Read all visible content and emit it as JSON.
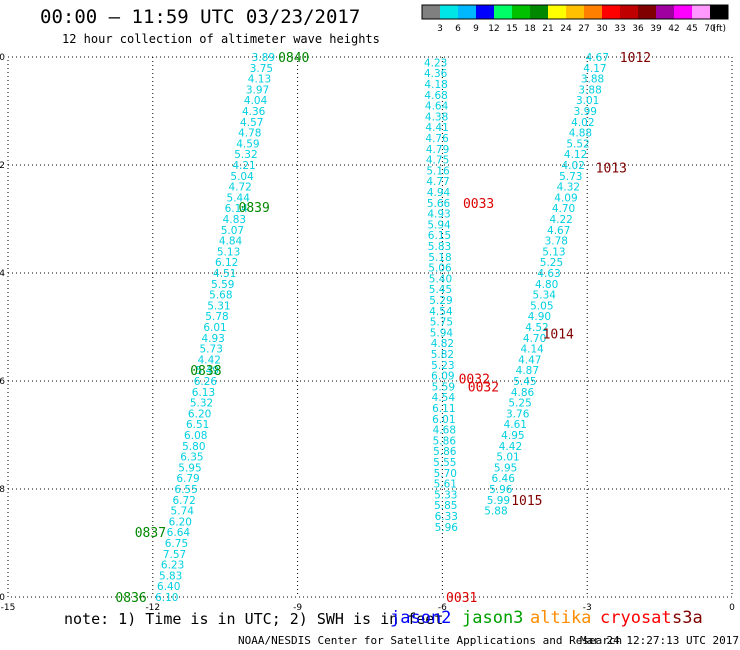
{
  "header": {
    "title": "00:00 – 11:59 UTC 03/23/2017",
    "subtitle": "12 hour collection of altimeter wave heights"
  },
  "colorbar": {
    "unit": "(ft)",
    "labels": [
      "3",
      "6",
      "9",
      "12",
      "15",
      "18",
      "21",
      "24",
      "27",
      "30",
      "33",
      "36",
      "39",
      "42",
      "45",
      "70"
    ],
    "colors": [
      "#808080",
      "#00e5e5",
      "#00b8ff",
      "#0000ff",
      "#00ff66",
      "#00c000",
      "#008800",
      "#ffff00",
      "#ffc000",
      "#ff8000",
      "#ff0000",
      "#c00000",
      "#800000",
      "#a000a0",
      "#ff00ff",
      "#ff99ff",
      "#000000"
    ]
  },
  "footer": {
    "note": "note: 1) Time is in UTC; 2) SWH is in feet",
    "credit": "NOAA/NESDIS Center for Satellite Applications and Research",
    "timestamp": "Mar 24 12:27:13 UTC 2017"
  },
  "legend": [
    {
      "name": "jason2",
      "color": "#0000ff"
    },
    {
      "name": "jason3",
      "color": "#00a000"
    },
    {
      "name": "altika",
      "color": "#ff8c00"
    },
    {
      "name": "cryosat",
      "color": "#ff0000"
    },
    {
      "name": "s3a",
      "color": "#800000"
    }
  ],
  "chart_data": {
    "type": "scatter",
    "title": "00:00 – 11:59 UTC 03/23/2017",
    "subtitle": "12 hour collection of altimeter wave heights",
    "xlim": [
      -15,
      0
    ],
    "ylim": [
      -10,
      0
    ],
    "xticks": [
      -15,
      -12,
      -9,
      -6,
      -3,
      0
    ],
    "yticks": [
      0,
      -2,
      -4,
      -6,
      -8,
      -10
    ],
    "grid": true,
    "value_color": "#00d0e0",
    "tracks": [
      {
        "satellite": "jason3",
        "time_color": "#008800",
        "points": [
          {
            "x": -9.71,
            "y": -0.0,
            "v": "3.89"
          },
          {
            "x": -9.75,
            "y": -0.2,
            "v": "3.75"
          },
          {
            "x": -9.79,
            "y": -0.4,
            "v": "4.13"
          },
          {
            "x": -9.83,
            "y": -0.6,
            "v": "3.97"
          },
          {
            "x": -9.87,
            "y": -0.8,
            "v": "4.04"
          },
          {
            "x": -9.91,
            "y": -1.0,
            "v": "4.36"
          },
          {
            "x": -9.95,
            "y": -1.2,
            "v": "4.57"
          },
          {
            "x": -9.99,
            "y": -1.4,
            "v": "4.78"
          },
          {
            "x": -10.03,
            "y": -1.6,
            "v": "4.59"
          },
          {
            "x": -10.07,
            "y": -1.8,
            "v": "5.32"
          },
          {
            "x": -10.11,
            "y": -2.0,
            "v": "4.21"
          },
          {
            "x": -10.15,
            "y": -2.2,
            "v": "5.04"
          },
          {
            "x": -10.19,
            "y": -2.4,
            "v": "4.72"
          },
          {
            "x": -10.23,
            "y": -2.6,
            "v": "5.44"
          },
          {
            "x": -10.27,
            "y": -2.8,
            "v": "6.14"
          },
          {
            "x": -10.31,
            "y": -3.0,
            "v": "4.83"
          },
          {
            "x": -10.35,
            "y": -3.2,
            "v": "5.07"
          },
          {
            "x": -10.39,
            "y": -3.4,
            "v": "4.84"
          },
          {
            "x": -10.43,
            "y": -3.6,
            "v": "5.13"
          },
          {
            "x": -10.47,
            "y": -3.8,
            "v": "6.12"
          },
          {
            "x": -10.51,
            "y": -4.0,
            "v": "4.51"
          },
          {
            "x": -10.55,
            "y": -4.2,
            "v": "5.59"
          },
          {
            "x": -10.59,
            "y": -4.4,
            "v": "5.68"
          },
          {
            "x": -10.63,
            "y": -4.6,
            "v": "5.31"
          },
          {
            "x": -10.67,
            "y": -4.8,
            "v": "5.78"
          },
          {
            "x": -10.71,
            "y": -5.0,
            "v": "6.01"
          },
          {
            "x": -10.75,
            "y": -5.2,
            "v": "4.93"
          },
          {
            "x": -10.79,
            "y": -5.4,
            "v": "5.73"
          },
          {
            "x": -10.83,
            "y": -5.6,
            "v": "4.42"
          },
          {
            "x": -10.87,
            "y": -5.8,
            "v": "5.49"
          },
          {
            "x": -10.91,
            "y": -6.0,
            "v": "6.26"
          },
          {
            "x": -10.95,
            "y": -6.2,
            "v": "6.13"
          },
          {
            "x": -10.99,
            "y": -6.4,
            "v": "5.32"
          },
          {
            "x": -11.03,
            "y": -6.6,
            "v": "6.20"
          },
          {
            "x": -11.07,
            "y": -6.8,
            "v": "6.51"
          },
          {
            "x": -11.11,
            "y": -7.0,
            "v": "6.08"
          },
          {
            "x": -11.15,
            "y": -7.2,
            "v": "5.80"
          },
          {
            "x": -11.19,
            "y": -7.4,
            "v": "6.35"
          },
          {
            "x": -11.23,
            "y": -7.6,
            "v": "5.95"
          },
          {
            "x": -11.27,
            "y": -7.8,
            "v": "6.79"
          },
          {
            "x": -11.31,
            "y": -8.0,
            "v": "6.55"
          },
          {
            "x": -11.35,
            "y": -8.2,
            "v": "6.72"
          },
          {
            "x": -11.39,
            "y": -8.4,
            "v": "5.74"
          },
          {
            "x": -11.43,
            "y": -8.6,
            "v": "6.20"
          },
          {
            "x": -11.47,
            "y": -8.8,
            "v": "6.64"
          },
          {
            "x": -11.51,
            "y": -9.0,
            "v": "6.75"
          },
          {
            "x": -11.55,
            "y": -9.2,
            "v": "7.57"
          },
          {
            "x": -11.59,
            "y": -9.4,
            "v": "6.23"
          },
          {
            "x": -11.63,
            "y": -9.6,
            "v": "5.83"
          },
          {
            "x": -11.67,
            "y": -9.8,
            "v": "6.40"
          },
          {
            "x": -11.71,
            "y": -10.0,
            "v": "6.10"
          }
        ],
        "times": [
          {
            "x": -9.08,
            "y": 0.0,
            "t": "0840"
          },
          {
            "x": -9.9,
            "y": -2.78,
            "t": "0839"
          },
          {
            "x": -10.9,
            "y": -5.8,
            "t": "0838"
          },
          {
            "x": -12.05,
            "y": -8.8,
            "t": "0837"
          },
          {
            "x": -12.45,
            "y": -10.0,
            "t": "0836"
          }
        ]
      },
      {
        "satellite": "cryosat",
        "time_color": "#dd0000",
        "points": [
          {
            "x": -6.14,
            "y": -0.1,
            "v": "4.23"
          },
          {
            "x": -6.14,
            "y": -0.3,
            "v": "4.36"
          },
          {
            "x": -6.13,
            "y": -0.5,
            "v": "4.18"
          },
          {
            "x": -6.13,
            "y": -0.7,
            "v": "4.68"
          },
          {
            "x": -6.12,
            "y": -0.9,
            "v": "4.64"
          },
          {
            "x": -6.12,
            "y": -1.1,
            "v": "4.38"
          },
          {
            "x": -6.11,
            "y": -1.3,
            "v": "4.41"
          },
          {
            "x": -6.11,
            "y": -1.5,
            "v": "4.76"
          },
          {
            "x": -6.1,
            "y": -1.7,
            "v": "4.79"
          },
          {
            "x": -6.1,
            "y": -1.9,
            "v": "4.75"
          },
          {
            "x": -6.09,
            "y": -2.1,
            "v": "5.16"
          },
          {
            "x": -6.09,
            "y": -2.3,
            "v": "4.77"
          },
          {
            "x": -6.08,
            "y": -2.5,
            "v": "4.94"
          },
          {
            "x": -6.08,
            "y": -2.7,
            "v": "5.66"
          },
          {
            "x": -6.07,
            "y": -2.9,
            "v": "4.93"
          },
          {
            "x": -6.07,
            "y": -3.1,
            "v": "5.94"
          },
          {
            "x": -6.06,
            "y": -3.3,
            "v": "6.15"
          },
          {
            "x": -6.06,
            "y": -3.5,
            "v": "5.83"
          },
          {
            "x": -6.05,
            "y": -3.7,
            "v": "5.18"
          },
          {
            "x": -6.05,
            "y": -3.9,
            "v": "5.06"
          },
          {
            "x": -6.04,
            "y": -4.1,
            "v": "5.40"
          },
          {
            "x": -6.04,
            "y": -4.3,
            "v": "5.45"
          },
          {
            "x": -6.03,
            "y": -4.5,
            "v": "5.29"
          },
          {
            "x": -6.03,
            "y": -4.7,
            "v": "4.54"
          },
          {
            "x": -6.02,
            "y": -4.9,
            "v": "5.75"
          },
          {
            "x": -6.02,
            "y": -5.1,
            "v": "5.94"
          },
          {
            "x": -6.0,
            "y": -5.3,
            "v": "4.82"
          },
          {
            "x": -6.0,
            "y": -5.5,
            "v": "5.82"
          },
          {
            "x": -5.99,
            "y": -5.7,
            "v": "5.23"
          },
          {
            "x": -5.99,
            "y": -5.9,
            "v": "6.09"
          },
          {
            "x": -5.98,
            "y": -6.1,
            "v": "5.59"
          },
          {
            "x": -5.98,
            "y": -6.3,
            "v": "4.54"
          },
          {
            "x": -5.97,
            "y": -6.5,
            "v": "6.11"
          },
          {
            "x": -5.97,
            "y": -6.7,
            "v": "6.01"
          },
          {
            "x": -5.96,
            "y": -6.9,
            "v": "4.68"
          },
          {
            "x": -5.96,
            "y": -7.1,
            "v": "5.86"
          },
          {
            "x": -5.95,
            "y": -7.3,
            "v": "5.86"
          },
          {
            "x": -5.95,
            "y": -7.5,
            "v": "5.55"
          },
          {
            "x": -5.94,
            "y": -7.7,
            "v": "5.70"
          },
          {
            "x": -5.94,
            "y": -7.9,
            "v": "5.61"
          },
          {
            "x": -5.93,
            "y": -8.1,
            "v": "5.33"
          },
          {
            "x": -5.93,
            "y": -8.3,
            "v": "5.85"
          },
          {
            "x": -5.92,
            "y": -8.5,
            "v": "6.33"
          },
          {
            "x": -5.92,
            "y": -8.7,
            "v": "5.96"
          }
        ],
        "times": [
          {
            "x": -5.25,
            "y": -2.7,
            "t": "0033"
          },
          {
            "x": -5.34,
            "y": -5.95,
            "t": "0032"
          },
          {
            "x": -5.15,
            "y": -6.1,
            "t": "0032"
          },
          {
            "x": -5.6,
            "y": -10.0,
            "t": "0031"
          }
        ]
      },
      {
        "satellite": "s3a",
        "time_color": "#800000",
        "points": [
          {
            "x": -2.79,
            "y": -0.0,
            "v": "4.67"
          },
          {
            "x": -2.84,
            "y": -0.2,
            "v": "4.17"
          },
          {
            "x": -2.89,
            "y": -0.4,
            "v": "3.88"
          },
          {
            "x": -2.94,
            "y": -0.6,
            "v": "3.88"
          },
          {
            "x": -2.99,
            "y": -0.8,
            "v": "3.01"
          },
          {
            "x": -3.04,
            "y": -1.0,
            "v": "3.99"
          },
          {
            "x": -3.09,
            "y": -1.2,
            "v": "4.02"
          },
          {
            "x": -3.14,
            "y": -1.4,
            "v": "4.88"
          },
          {
            "x": -3.19,
            "y": -1.6,
            "v": "5.52"
          },
          {
            "x": -3.24,
            "y": -1.8,
            "v": "4.12"
          },
          {
            "x": -3.29,
            "y": -2.0,
            "v": "4.02"
          },
          {
            "x": -3.34,
            "y": -2.2,
            "v": "5.73"
          },
          {
            "x": -3.39,
            "y": -2.4,
            "v": "4.32"
          },
          {
            "x": -3.44,
            "y": -2.6,
            "v": "4.09"
          },
          {
            "x": -3.49,
            "y": -2.8,
            "v": "4.70"
          },
          {
            "x": -3.54,
            "y": -3.0,
            "v": "4.22"
          },
          {
            "x": -3.59,
            "y": -3.2,
            "v": "4.67"
          },
          {
            "x": -3.64,
            "y": -3.4,
            "v": "3.78"
          },
          {
            "x": -3.69,
            "y": -3.6,
            "v": "5.13"
          },
          {
            "x": -3.74,
            "y": -3.8,
            "v": "5.25"
          },
          {
            "x": -3.79,
            "y": -4.0,
            "v": "4.63"
          },
          {
            "x": -3.84,
            "y": -4.2,
            "v": "4.80"
          },
          {
            "x": -3.89,
            "y": -4.4,
            "v": "5.34"
          },
          {
            "x": -3.94,
            "y": -4.6,
            "v": "5.05"
          },
          {
            "x": -3.99,
            "y": -4.8,
            "v": "4.90"
          },
          {
            "x": -4.04,
            "y": -5.0,
            "v": "4.52"
          },
          {
            "x": -4.09,
            "y": -5.2,
            "v": "4.70"
          },
          {
            "x": -4.14,
            "y": -5.4,
            "v": "4.14"
          },
          {
            "x": -4.19,
            "y": -5.6,
            "v": "4.47"
          },
          {
            "x": -4.24,
            "y": -5.8,
            "v": "4.87"
          },
          {
            "x": -4.29,
            "y": -6.0,
            "v": "5.45"
          },
          {
            "x": -4.34,
            "y": -6.2,
            "v": "4.86"
          },
          {
            "x": -4.39,
            "y": -6.4,
            "v": "5.25"
          },
          {
            "x": -4.44,
            "y": -6.6,
            "v": "3.76"
          },
          {
            "x": -4.49,
            "y": -6.8,
            "v": "4.61"
          },
          {
            "x": -4.54,
            "y": -7.0,
            "v": "4.95"
          },
          {
            "x": -4.59,
            "y": -7.2,
            "v": "4.42"
          },
          {
            "x": -4.64,
            "y": -7.4,
            "v": "5.01"
          },
          {
            "x": -4.69,
            "y": -7.6,
            "v": "5.95"
          },
          {
            "x": -4.74,
            "y": -7.8,
            "v": "6.46"
          },
          {
            "x": -4.79,
            "y": -8.0,
            "v": "5.96"
          },
          {
            "x": -4.84,
            "y": -8.2,
            "v": "5.99"
          },
          {
            "x": -4.89,
            "y": -8.4,
            "v": "5.88"
          }
        ],
        "times": [
          {
            "x": -2.0,
            "y": 0.0,
            "t": "1012"
          },
          {
            "x": -2.5,
            "y": -2.05,
            "t": "1013"
          },
          {
            "x": -3.6,
            "y": -5.12,
            "t": "1014"
          },
          {
            "x": -4.25,
            "y": -8.2,
            "t": "1015"
          }
        ]
      }
    ]
  }
}
